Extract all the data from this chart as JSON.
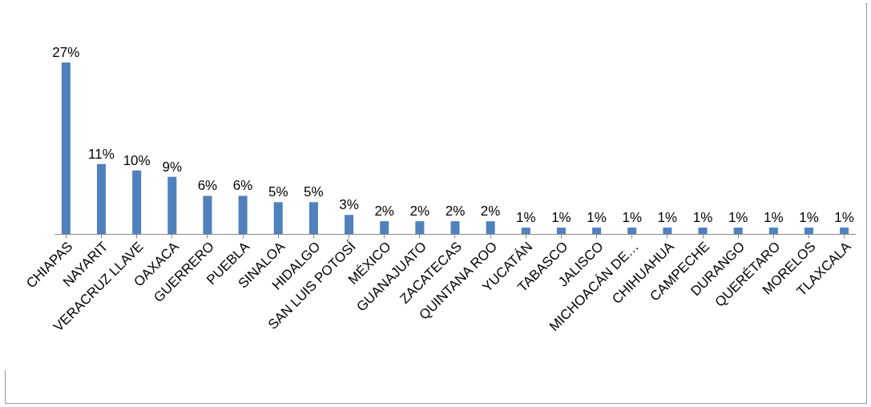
{
  "chart_data": {
    "type": "bar",
    "categories": [
      "CHIAPAS",
      "NAYARIT",
      "VERACRUZ LLAVE",
      "OAXACA",
      "GUERRERO",
      "PUEBLA",
      "SINALOA",
      "HIDALGO",
      "SAN LUIS POTOSÍ",
      "MÉXICO",
      "GUANAJUATO",
      "ZACATECAS",
      "QUINTANA ROO",
      "YUCATÁN",
      "TABASCO",
      "JALISCO",
      "MICHOACÁN DE…",
      "CHIHUAHUA",
      "CAMPECHE",
      "DURANGO",
      "QUERÉTARO",
      "MORELOS",
      "TLAXCALA"
    ],
    "values": [
      27,
      11,
      10,
      9,
      6,
      6,
      5,
      5,
      3,
      2,
      2,
      2,
      2,
      1,
      1,
      1,
      1,
      1,
      1,
      1,
      1,
      1,
      1
    ],
    "value_labels": [
      "27%",
      "11%",
      "10%",
      "9%",
      "6%",
      "6%",
      "5%",
      "5%",
      "3%",
      "2%",
      "2%",
      "2%",
      "2%",
      "1%",
      "1%",
      "1%",
      "1%",
      "1%",
      "1%",
      "1%",
      "1%",
      "1%",
      "1%"
    ],
    "color": "#4f81bd"
  }
}
